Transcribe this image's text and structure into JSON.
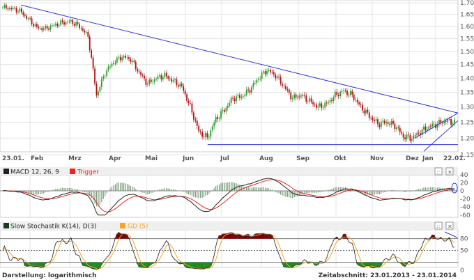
{
  "chart_data": {
    "type": "candlestick",
    "scale_label": "Darstellung: logarithmisch",
    "period_label": "Zeitabschnitt: 23.01.2013 - 23.01.2014",
    "x_labels": [
      "23.01.",
      "Feb",
      "Mrz",
      "Apr",
      "Mai",
      "Jun",
      "Jul",
      "Aug",
      "Sep",
      "Okt",
      "Nov",
      "Dez",
      "Jan",
      "22.01."
    ],
    "y_ticks": [
      "1.700",
      "1.650",
      "1.600",
      "1.550",
      "1.500",
      "1.450",
      "1.400",
      "1.350",
      "1.300",
      "1.250",
      "1.200",
      "1.150"
    ],
    "ylim": [
      1.15,
      1.7
    ],
    "weekly_close": [
      1.68,
      1.675,
      1.665,
      1.63,
      1.595,
      1.59,
      1.605,
      1.615,
      1.62,
      1.6,
      1.56,
      1.34,
      1.42,
      1.46,
      1.48,
      1.47,
      1.42,
      1.38,
      1.4,
      1.41,
      1.39,
      1.37,
      1.3,
      1.22,
      1.2,
      1.26,
      1.29,
      1.33,
      1.335,
      1.36,
      1.4,
      1.43,
      1.41,
      1.37,
      1.33,
      1.34,
      1.32,
      1.3,
      1.31,
      1.34,
      1.355,
      1.34,
      1.3,
      1.27,
      1.245,
      1.25,
      1.24,
      1.205,
      1.2,
      1.22,
      1.235,
      1.245,
      1.255,
      1.25
    ],
    "trendlines": [
      {
        "from": [
          0.04,
          1.69
        ],
        "to": [
          1.0,
          1.28
        ]
      },
      {
        "from": [
          0.45,
          1.18
        ],
        "to": [
          1.0,
          1.18
        ]
      },
      {
        "from": [
          0.905,
          1.2
        ],
        "to": [
          1.0,
          1.28
        ]
      },
      {
        "from": [
          0.925,
          1.16
        ],
        "to": [
          1.0,
          1.255
        ]
      }
    ],
    "macd": {
      "label": "MACD 12, 26, 9",
      "trigger_label": "Trigger",
      "y_ticks": [
        "40",
        "20",
        "0",
        "-20",
        "-40",
        "-60"
      ],
      "ylim": [
        -60,
        40
      ]
    },
    "stochastic": {
      "label": "Slow Stochastik K(14), D(3)",
      "gd_label": "GD (5)",
      "y_ticks": [
        "80",
        "50",
        "0"
      ],
      "levels": [
        20,
        50,
        80
      ]
    },
    "colors": {
      "up": "#2e9e2e",
      "down": "#b01010",
      "trend": "#3333dd",
      "macd": "#222222",
      "trigger": "#ee2222",
      "gd": "#f5a623",
      "overbought": "#7a0000",
      "oversold": "#1e8a1e"
    }
  }
}
